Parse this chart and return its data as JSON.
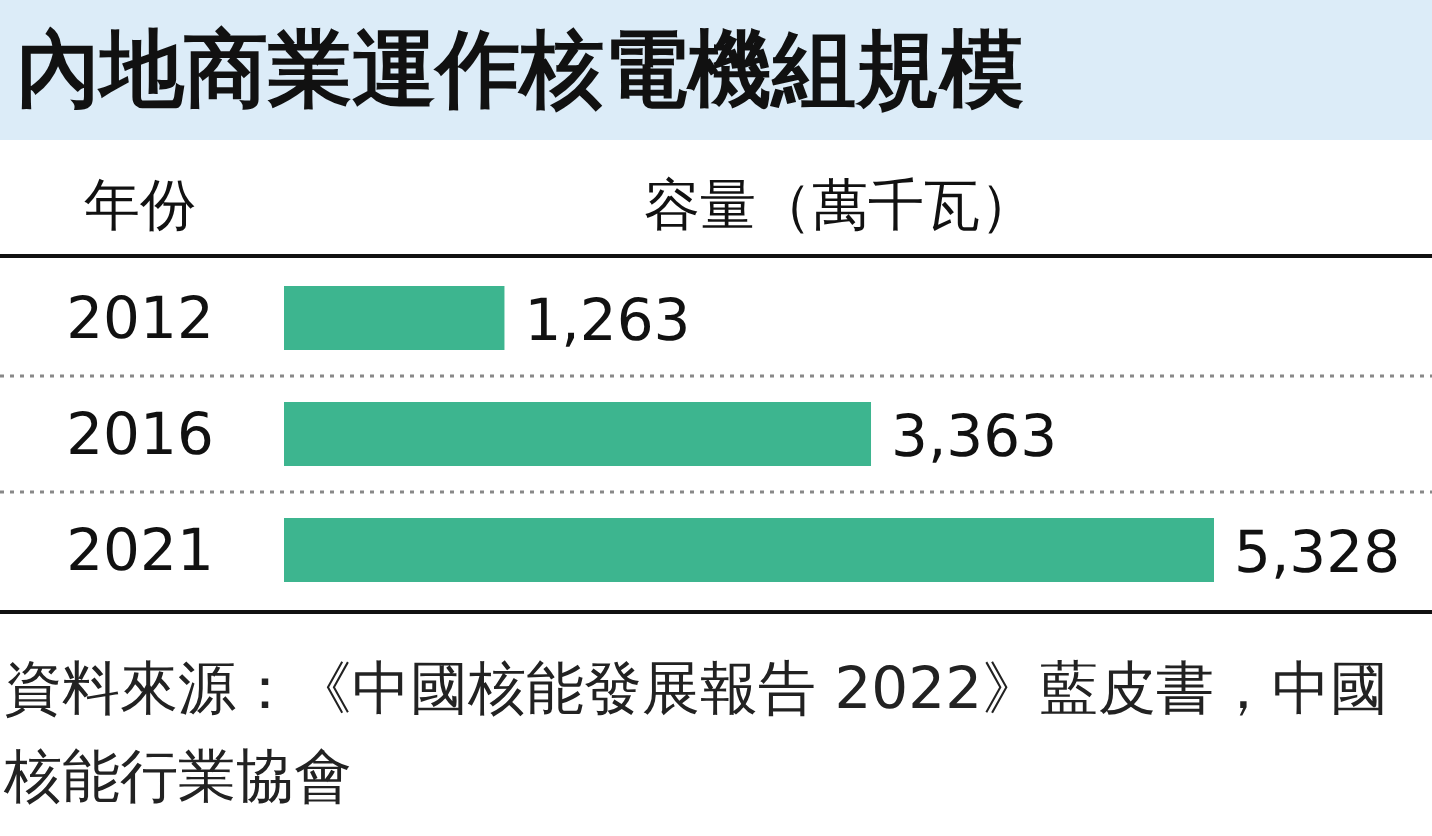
{
  "chart_data": {
    "type": "bar",
    "orientation": "horizontal",
    "title": "內地商業運作核電機組規模",
    "ylabel": "年份",
    "xlabel": "容量（萬千瓦）",
    "categories": [
      "2012",
      "2016",
      "2021"
    ],
    "values": [
      1263,
      3363,
      5328
    ],
    "value_labels": [
      "1,263",
      "3,363",
      "5,328"
    ],
    "color": "#3db58f",
    "annotations": [
      "資料來源：《中國核能發展報告 2022》藍皮書，中國核能行業協會"
    ]
  }
}
